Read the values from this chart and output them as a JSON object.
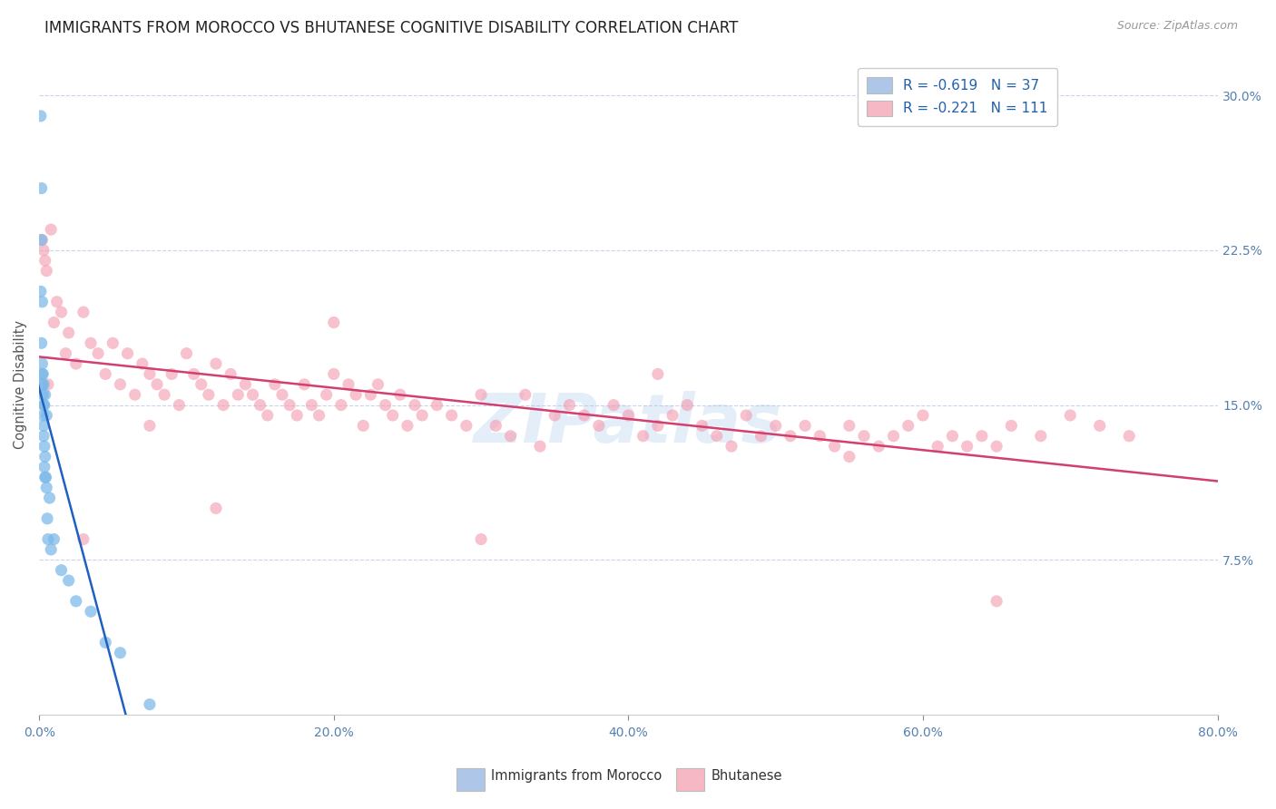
{
  "title": "IMMIGRANTS FROM MOROCCO VS BHUTANESE COGNITIVE DISABILITY CORRELATION CHART",
  "source": "Source: ZipAtlas.com",
  "ylabel": "Cognitive Disability",
  "xlim": [
    0.0,
    80.0
  ],
  "ylim": [
    0.0,
    32.0
  ],
  "legend_label1": "R = -0.619   N = 37",
  "legend_label2": "R = -0.221   N = 111",
  "legend_color1": "#aec6e8",
  "legend_color2": "#f5b8c4",
  "series1_color": "#7ab8e8",
  "series2_color": "#f4a0b5",
  "trend1_color": "#2060c0",
  "trend2_color": "#d04070",
  "watermark": "ZIPatlas",
  "morocco_x": [
    0.1,
    0.1,
    0.15,
    0.15,
    0.15,
    0.2,
    0.2,
    0.2,
    0.2,
    0.25,
    0.25,
    0.25,
    0.3,
    0.3,
    0.3,
    0.3,
    0.35,
    0.35,
    0.35,
    0.4,
    0.4,
    0.4,
    0.45,
    0.5,
    0.5,
    0.55,
    0.6,
    0.7,
    0.8,
    1.0,
    1.5,
    2.0,
    2.5,
    3.5,
    4.5,
    5.5,
    7.5
  ],
  "morocco_y": [
    29.0,
    20.5,
    25.5,
    23.0,
    18.0,
    20.0,
    17.0,
    16.5,
    16.0,
    16.5,
    15.5,
    14.5,
    16.0,
    15.0,
    14.0,
    13.5,
    15.0,
    13.0,
    12.0,
    15.5,
    12.5,
    11.5,
    11.5,
    14.5,
    11.0,
    9.5,
    8.5,
    10.5,
    8.0,
    8.5,
    7.0,
    6.5,
    5.5,
    5.0,
    3.5,
    3.0,
    0.5
  ],
  "bhutanese_x": [
    0.2,
    0.3,
    0.4,
    0.5,
    0.6,
    0.8,
    1.0,
    1.2,
    1.5,
    1.8,
    2.0,
    2.5,
    3.0,
    3.5,
    4.0,
    4.5,
    5.0,
    5.5,
    6.0,
    6.5,
    7.0,
    7.5,
    8.0,
    8.5,
    9.0,
    9.5,
    10.0,
    10.5,
    11.0,
    11.5,
    12.0,
    12.5,
    13.0,
    13.5,
    14.0,
    14.5,
    15.0,
    15.5,
    16.0,
    16.5,
    17.0,
    17.5,
    18.0,
    18.5,
    19.0,
    19.5,
    20.0,
    20.5,
    21.0,
    21.5,
    22.0,
    22.5,
    23.0,
    23.5,
    24.0,
    24.5,
    25.0,
    25.5,
    26.0,
    27.0,
    28.0,
    29.0,
    30.0,
    31.0,
    32.0,
    33.0,
    34.0,
    35.0,
    36.0,
    37.0,
    38.0,
    39.0,
    40.0,
    41.0,
    42.0,
    43.0,
    44.0,
    45.0,
    46.0,
    47.0,
    48.0,
    49.0,
    50.0,
    51.0,
    52.0,
    53.0,
    54.0,
    55.0,
    56.0,
    57.0,
    58.0,
    59.0,
    60.0,
    61.0,
    62.0,
    63.0,
    64.0,
    65.0,
    66.0,
    68.0,
    70.0,
    72.0,
    74.0,
    3.0,
    7.5,
    12.0,
    20.0,
    30.0,
    42.0,
    55.0,
    65.0
  ],
  "bhutanese_y": [
    23.0,
    22.5,
    22.0,
    21.5,
    16.0,
    23.5,
    19.0,
    20.0,
    19.5,
    17.5,
    18.5,
    17.0,
    19.5,
    18.0,
    17.5,
    16.5,
    18.0,
    16.0,
    17.5,
    15.5,
    17.0,
    16.5,
    16.0,
    15.5,
    16.5,
    15.0,
    17.5,
    16.5,
    16.0,
    15.5,
    17.0,
    15.0,
    16.5,
    15.5,
    16.0,
    15.5,
    15.0,
    14.5,
    16.0,
    15.5,
    15.0,
    14.5,
    16.0,
    15.0,
    14.5,
    15.5,
    16.5,
    15.0,
    16.0,
    15.5,
    14.0,
    15.5,
    16.0,
    15.0,
    14.5,
    15.5,
    14.0,
    15.0,
    14.5,
    15.0,
    14.5,
    14.0,
    15.5,
    14.0,
    13.5,
    15.5,
    13.0,
    14.5,
    15.0,
    14.5,
    14.0,
    15.0,
    14.5,
    13.5,
    14.0,
    14.5,
    15.0,
    14.0,
    13.5,
    13.0,
    14.5,
    13.5,
    14.0,
    13.5,
    14.0,
    13.5,
    13.0,
    14.0,
    13.5,
    13.0,
    13.5,
    14.0,
    14.5,
    13.0,
    13.5,
    13.0,
    13.5,
    13.0,
    14.0,
    13.5,
    14.5,
    14.0,
    13.5,
    8.5,
    14.0,
    10.0,
    19.0,
    8.5,
    16.5,
    12.5,
    5.5
  ]
}
